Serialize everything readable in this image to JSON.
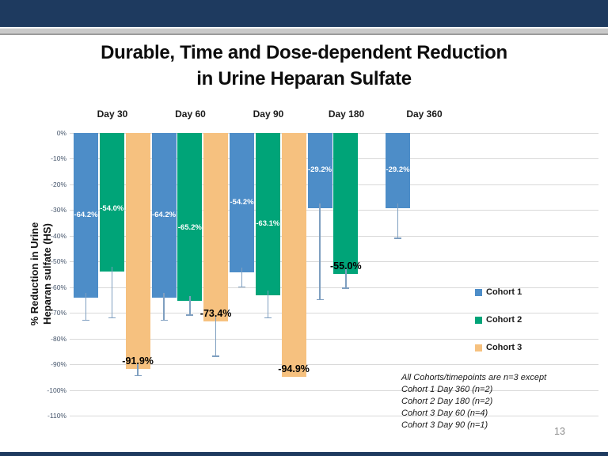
{
  "slide": {
    "title_line1": "Durable, Time and Dose-dependent Reduction",
    "title_line2": "in Urine Heparan Sulfate",
    "page_number": "13",
    "colors": {
      "header_bar": "#1e3a5f",
      "divider_gray": "#c9c9c9"
    }
  },
  "chart_data": {
    "type": "bar",
    "title": "Durable, Time and Dose-dependent Reduction in Urine Heparan Sulfate",
    "ylabel_line1": "% Reduction in Urine",
    "ylabel_line2": "Heparan sulfate (HS)",
    "ylim": [
      0,
      -110
    ],
    "ytick_step": 10,
    "ytick_labels": [
      "0%",
      "-10%",
      "-20%",
      "-30%",
      "-40%",
      "-50%",
      "-60%",
      "-70%",
      "-80%",
      "-90%",
      "-100%",
      "-110%"
    ],
    "grid": true,
    "legend_position": "right-inside",
    "categories": [
      "Day 30",
      "Day 60",
      "Day 90",
      "Day 180",
      "Day 360"
    ],
    "series": [
      {
        "name": "Cohort 1",
        "color": "#4d8dc8",
        "values": [
          -64.2,
          -64.2,
          -54.2,
          -29.2,
          -29.2
        ],
        "error_low": [
          -73,
          -73,
          -60,
          -65,
          -41
        ],
        "label_color": [
          "white",
          "white",
          "white",
          "white",
          "white"
        ],
        "label_dy": [
          0,
          0,
          0,
          0,
          0
        ]
      },
      {
        "name": "Cohort 2",
        "color": "#00a478",
        "values": [
          -54.0,
          -65.2,
          -63.1,
          -55.0,
          null
        ],
        "error_low": [
          -72,
          -71,
          -72,
          -60.5,
          null
        ],
        "label_color": [
          "white",
          "white",
          "white",
          "black",
          null
        ],
        "label_dy": [
          8,
          14,
          13,
          0,
          0
        ]
      },
      {
        "name": "Cohort 3",
        "color": "#f6c17f",
        "values": [
          -91.9,
          -73.4,
          -94.9,
          null,
          null
        ],
        "error_low": [
          -94.5,
          -87,
          null,
          null,
          null
        ],
        "label_color": [
          "black",
          "black",
          "black",
          null,
          null
        ],
        "label_dy": [
          0,
          0,
          0,
          0,
          0
        ]
      }
    ],
    "notes": [
      "All Cohorts/timepoints are n=3 except",
      "Cohort 1 Day 360 (n=2)",
      "Cohort 2 Day 180 (n=2)",
      "Cohort 3 Day 60 (n=4)",
      "Cohort 3 Day 90 (n=1)"
    ]
  }
}
